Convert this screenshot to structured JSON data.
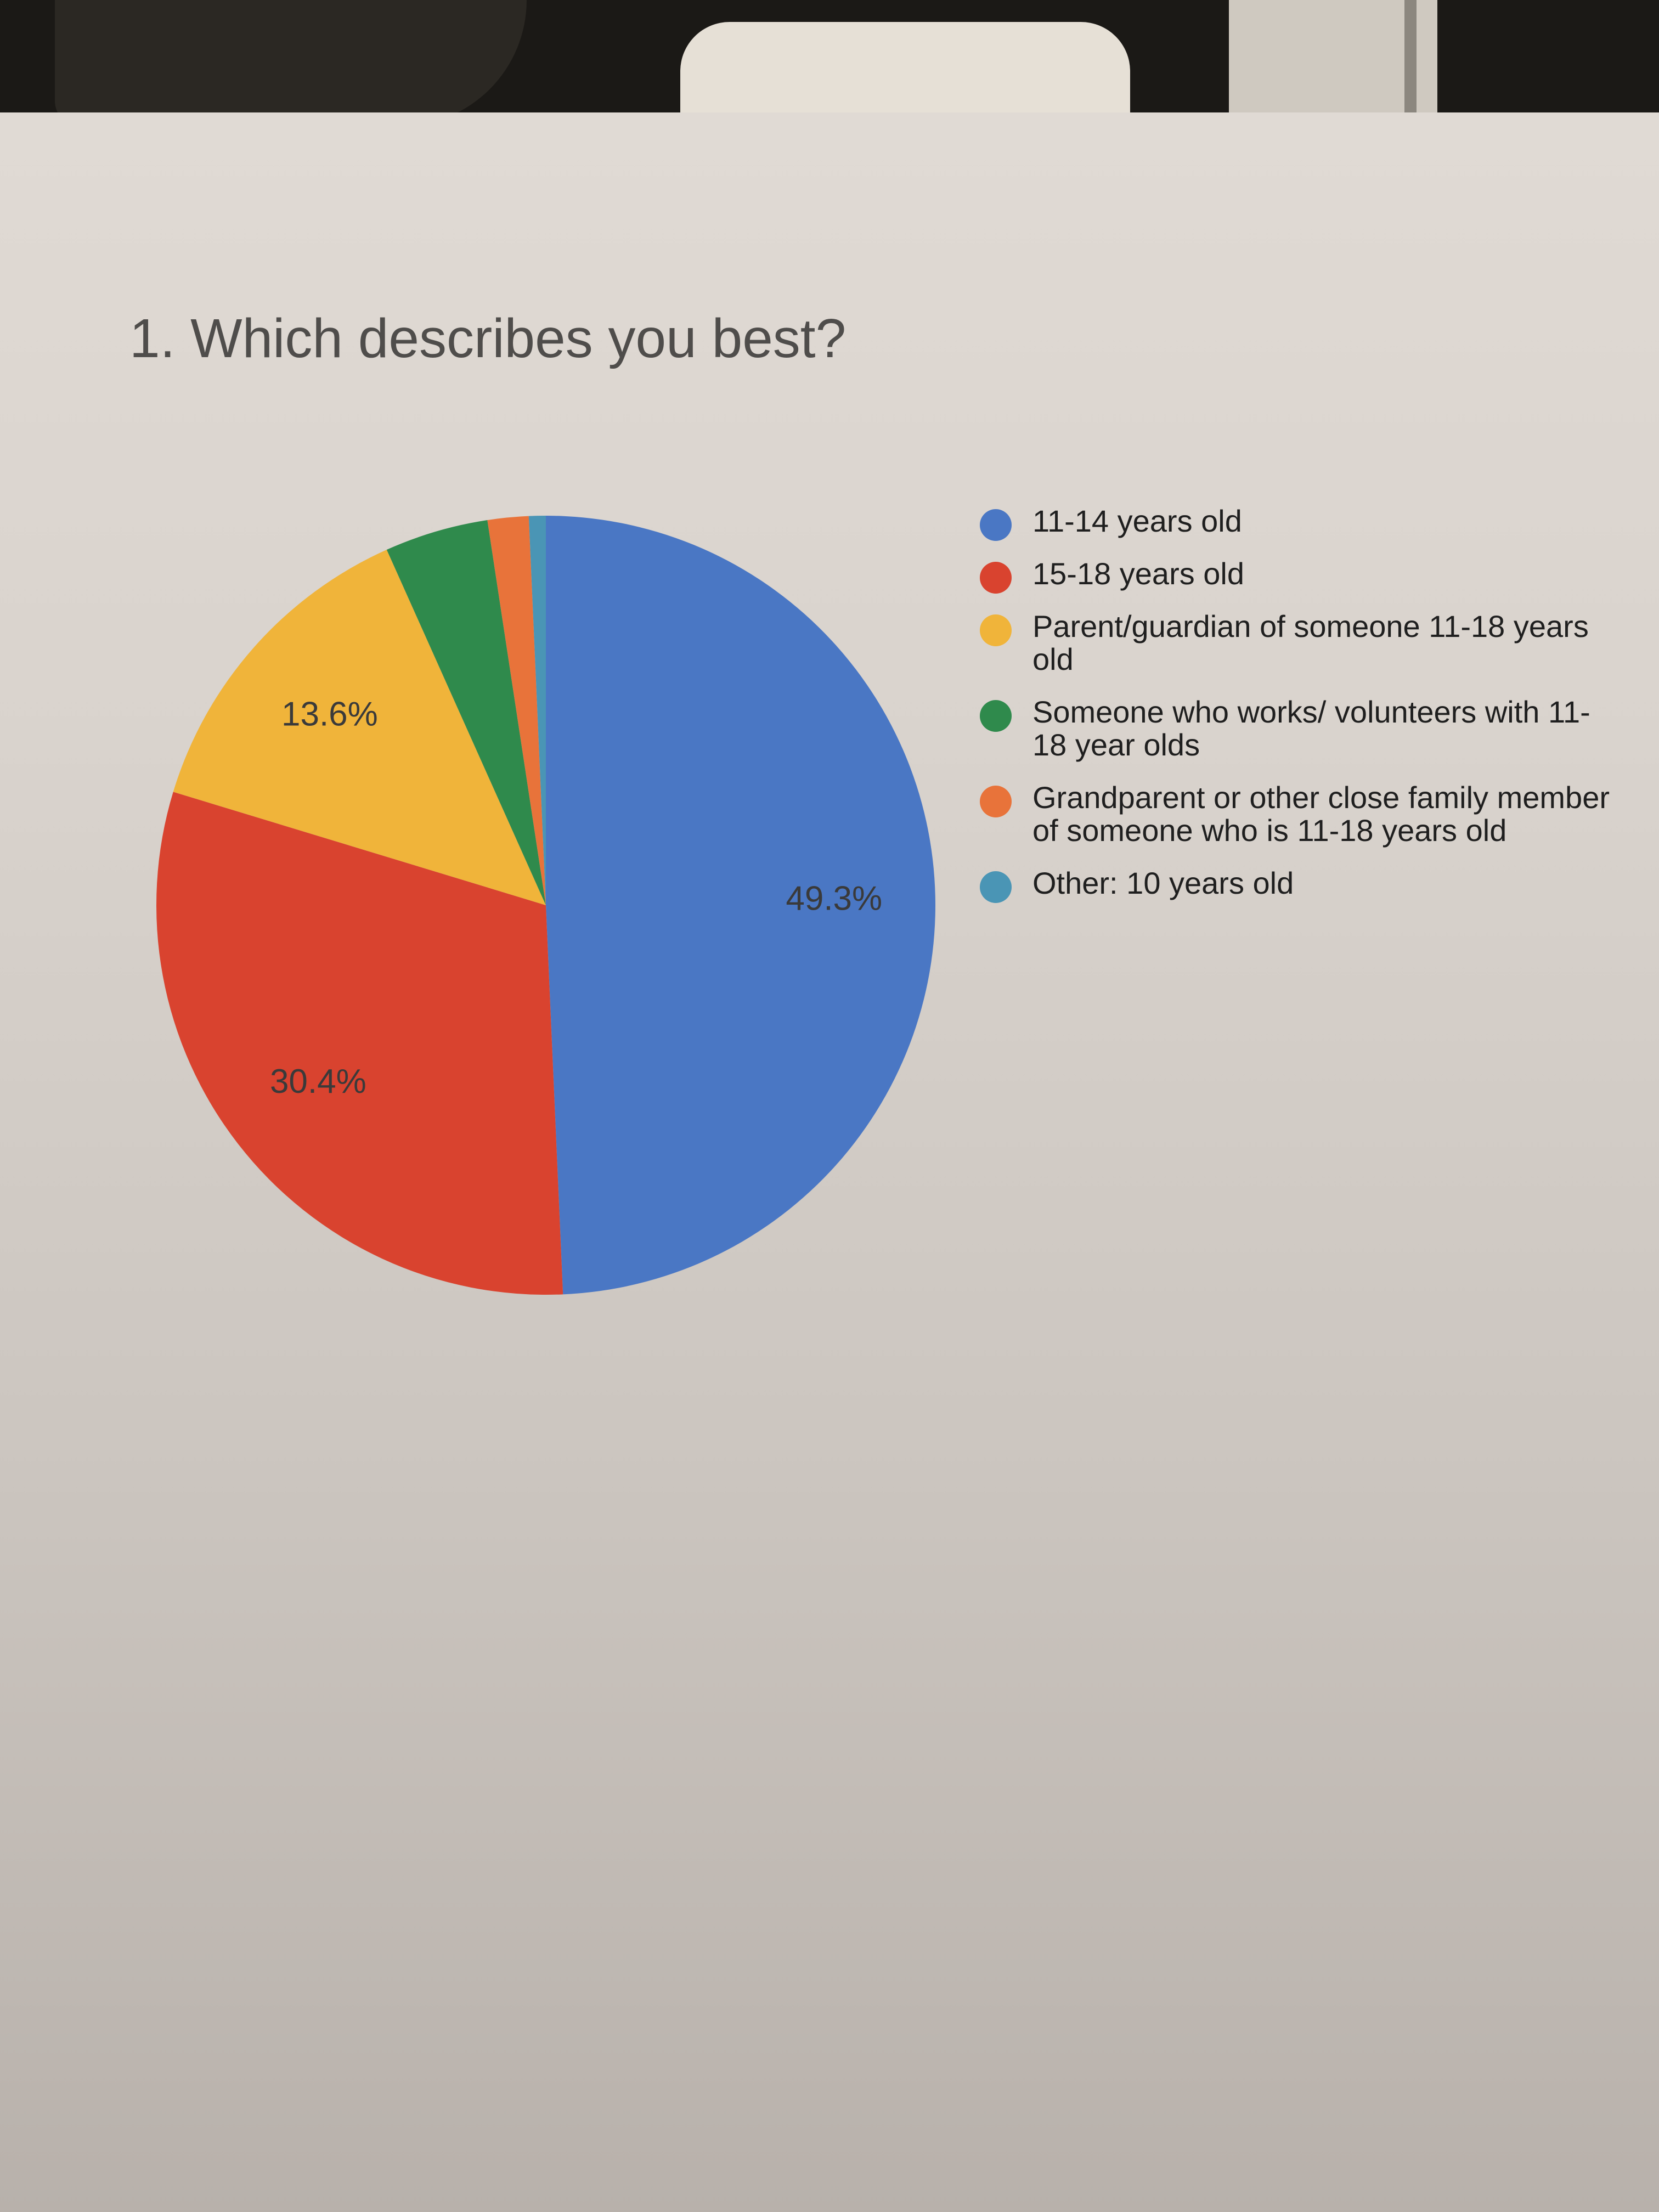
{
  "chart_data": {
    "type": "pie",
    "title": "1. Which describes you best?",
    "slices": [
      {
        "label": "11-14 years old",
        "value": 49.3,
        "value_label": "49.3%",
        "color": "#4a77c4"
      },
      {
        "label": "15-18 years old",
        "value": 30.4,
        "value_label": "30.4%",
        "color": "#d9432f"
      },
      {
        "label": "Parent/guardian of someone 11-18 years old",
        "value": 13.6,
        "value_label": "13.6%",
        "color": "#f0b43a"
      },
      {
        "label": "Someone who works/ volunteers with 11-18 year olds",
        "value": 4.3,
        "value_label": "",
        "color": "#2f8a4c"
      },
      {
        "label": "Grandparent or other close family member of someone who is 11-18 years old",
        "value": 1.7,
        "value_label": "",
        "color": "#e8733a"
      },
      {
        "label": "Other: 10 years old",
        "value": 0.7,
        "value_label": "",
        "color": "#4a95b5"
      }
    ],
    "legend_position": "right"
  }
}
